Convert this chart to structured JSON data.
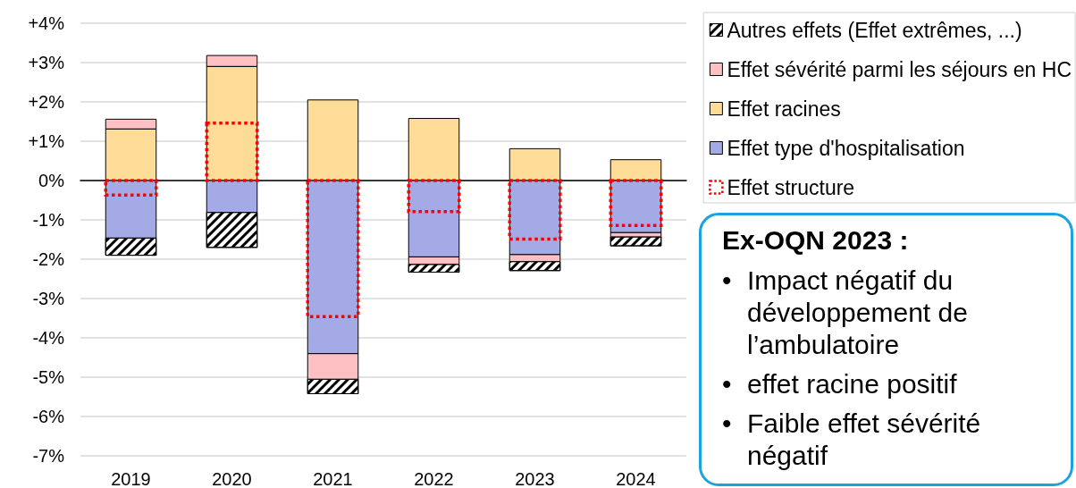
{
  "chart_data": {
    "type": "bar",
    "categories": [
      "2019",
      "2020",
      "2021",
      "2022",
      "2023",
      "2024"
    ],
    "series": [
      {
        "name": "Autres effets (Effet extrêmes, ...)",
        "color": "#000000",
        "base": [
          -1.46,
          -0.81,
          -5.05,
          -2.13,
          -2.06,
          -1.43
        ],
        "values": [
          -0.44,
          -0.89,
          -0.37,
          -0.2,
          -0.23,
          -0.23
        ]
      },
      {
        "name": "Effet sévérité parmi les séjours en HC",
        "color": "#ffc0c4",
        "base": [
          1.31,
          2.9,
          -4.4,
          -1.94,
          -1.88,
          -1.32
        ],
        "values": [
          0.25,
          0.28,
          -0.65,
          -0.19,
          -0.18,
          -0.11
        ]
      },
      {
        "name": "Effet racines",
        "color": "#fddc98",
        "base": [
          0,
          0,
          0,
          0,
          0,
          0
        ],
        "values": [
          1.31,
          2.9,
          2.05,
          1.58,
          0.81,
          0.53
        ]
      },
      {
        "name": "Effet type d'hospitalisation",
        "color": "#a4aae6",
        "base": [
          0,
          0,
          0,
          0,
          0,
          0
        ],
        "values": [
          -1.46,
          -0.81,
          -4.4,
          -1.94,
          -1.88,
          -1.32
        ]
      },
      {
        "name": "Effet structure",
        "color": "#ff0000",
        "line_style": "dotted",
        "base": [
          0,
          0,
          0,
          0,
          0,
          0
        ],
        "values": [
          -0.37,
          1.46,
          -3.46,
          -0.79,
          -1.49,
          -1.14
        ]
      }
    ],
    "ylim": [
      -7,
      4
    ],
    "yticks": [
      {
        "value": -7,
        "label": "-7%"
      },
      {
        "value": -6,
        "label": "-6%"
      },
      {
        "value": -5,
        "label": "-5%"
      },
      {
        "value": -4,
        "label": "-4%"
      },
      {
        "value": -3,
        "label": "-3%"
      },
      {
        "value": -2,
        "label": "-2%"
      },
      {
        "value": -1,
        "label": "-1%"
      },
      {
        "value": 0,
        "label": "0%"
      },
      {
        "value": 1,
        "label": "+1%"
      },
      {
        "value": 2,
        "label": "+2%"
      },
      {
        "value": 3,
        "label": "+3%"
      },
      {
        "value": 4,
        "label": "+4%"
      }
    ],
    "grid": "y",
    "legend": "top right",
    "annotations": [
      "Ex-OQN 2023 :",
      "• Impact négatif du développement de l’ambulatoire",
      "• effet racine positif",
      "• Faible effet sévérité négatif"
    ]
  }
}
